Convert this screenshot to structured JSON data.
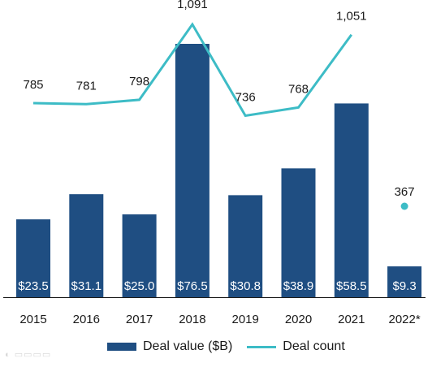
{
  "colors": {
    "bar": "#1f4e82",
    "line": "#3dbcc6",
    "text": "#1a1a1a",
    "bar_label": "#ffffff",
    "axis": "#1a1a1a"
  },
  "legend": {
    "bar_label": "Deal value ($B)",
    "line_label": "Deal count"
  },
  "watermark": "\u0010\u0010\u0010",
  "chart_data": {
    "type": "bar",
    "categories": [
      "2015",
      "2016",
      "2017",
      "2018",
      "2019",
      "2020",
      "2021",
      "2022*"
    ],
    "series": [
      {
        "name": "Deal value ($B)",
        "type": "bar",
        "values": [
          23.5,
          31.1,
          25.0,
          76.5,
          30.8,
          38.9,
          58.5,
          9.3
        ],
        "labels": [
          "$23.5",
          "$31.1",
          "$25.0",
          "$76.5",
          "$30.8",
          "$38.9",
          "$58.5",
          "$9.3"
        ]
      },
      {
        "name": "Deal count",
        "type": "line",
        "values": [
          785,
          781,
          798,
          1091,
          736,
          768,
          1051,
          367
        ],
        "labels": [
          "785",
          "781",
          "798",
          "1,091",
          "736",
          "768",
          "1,051",
          "367"
        ],
        "line_points": 7
      }
    ],
    "xlabel": "",
    "ylabel": "",
    "legend_position": "bottom",
    "grid": false
  }
}
